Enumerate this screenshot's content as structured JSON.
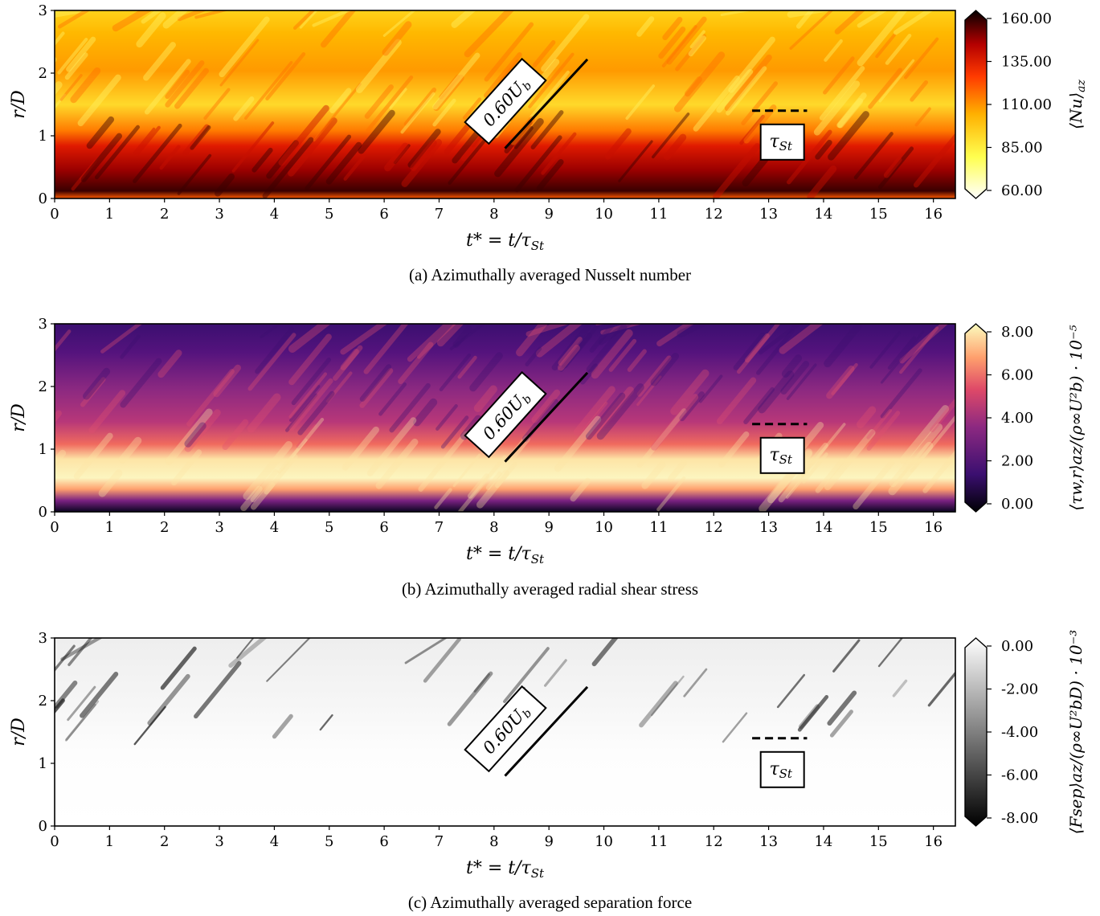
{
  "panels": [
    {
      "caption": "(a) Azimuthally averaged Nusselt number",
      "colormap": "hot_r",
      "colorbar_label": "⟨Nu⟩",
      "colorbar_label_sub": "az",
      "colorbar_ticks": [
        "160.00",
        "135.00",
        "110.00",
        "85.00",
        "60.00"
      ],
      "slope_label": "0.60U",
      "slope_label_sub": "b",
      "tau_label": "τ",
      "tau_label_sub": "St",
      "xlabel_main": "t* = t/τ",
      "xlabel_sub": "St",
      "ylabel": "r/D"
    },
    {
      "caption": "(b) Azimuthally averaged radial shear stress",
      "colormap": "magma",
      "colorbar_label": "⟨τw,r⟩az/(ρ∞U²b) · 10⁻⁵",
      "colorbar_ticks": [
        "8.00",
        "6.00",
        "4.00",
        "2.00",
        "0.00"
      ],
      "slope_label": "0.60U",
      "slope_label_sub": "b",
      "tau_label": "τ",
      "tau_label_sub": "St",
      "xlabel_main": "t* = t/τ",
      "xlabel_sub": "St",
      "ylabel": "r/D"
    },
    {
      "caption": "(c) Azimuthally averaged separation force",
      "colormap": "gray",
      "colorbar_label": "⟨Fsep⟩az/(ρ∞U²bD) · 10⁻³",
      "colorbar_ticks": [
        "0.00",
        "-2.00",
        "-4.00",
        "-6.00",
        "-8.00"
      ],
      "slope_label": "0.60U",
      "slope_label_sub": "b",
      "tau_label": "τ",
      "tau_label_sub": "St",
      "xlabel_main": "t* = t/τ",
      "xlabel_sub": "St",
      "ylabel": "r/D"
    }
  ],
  "chart_data": [
    {
      "type": "heatmap",
      "x_range": [
        0,
        16.4
      ],
      "y_range": [
        0,
        3
      ],
      "x_ticks": [
        0,
        1,
        2,
        3,
        4,
        5,
        6,
        7,
        8,
        9,
        10,
        11,
        12,
        13,
        14,
        15,
        16
      ],
      "y_ticks": [
        0,
        1,
        2,
        3
      ],
      "color_range": [
        60,
        160
      ],
      "annotations": {
        "slope_line": {
          "x": [
            8.2,
            9.7
          ],
          "y": [
            0.8,
            2.22
          ],
          "label": "0.60Ub"
        },
        "tau_line": {
          "x": [
            12.7,
            13.7
          ],
          "y": 1.4,
          "label": "τSt"
        }
      }
    },
    {
      "type": "heatmap",
      "x_range": [
        0,
        16.4
      ],
      "y_range": [
        0,
        3
      ],
      "x_ticks": [
        0,
        1,
        2,
        3,
        4,
        5,
        6,
        7,
        8,
        9,
        10,
        11,
        12,
        13,
        14,
        15,
        16
      ],
      "y_ticks": [
        0,
        1,
        2,
        3
      ],
      "color_range": [
        0,
        8
      ],
      "annotations": {
        "slope_line": {
          "x": [
            8.2,
            9.7
          ],
          "y": [
            0.8,
            2.22
          ],
          "label": "0.60Ub"
        },
        "tau_line": {
          "x": [
            12.7,
            13.7
          ],
          "y": 1.4,
          "label": "τSt"
        }
      }
    },
    {
      "type": "heatmap",
      "x_range": [
        0,
        16.4
      ],
      "y_range": [
        0,
        3
      ],
      "x_ticks": [
        0,
        1,
        2,
        3,
        4,
        5,
        6,
        7,
        8,
        9,
        10,
        11,
        12,
        13,
        14,
        15,
        16
      ],
      "y_ticks": [
        0,
        1,
        2,
        3
      ],
      "color_range": [
        -8,
        0
      ],
      "annotations": {
        "slope_line": {
          "x": [
            8.2,
            9.7
          ],
          "y": [
            0.8,
            2.22
          ],
          "label": "0.60Ub"
        },
        "tau_line": {
          "x": [
            12.7,
            13.7
          ],
          "y": 1.4,
          "label": "τSt"
        }
      }
    }
  ]
}
